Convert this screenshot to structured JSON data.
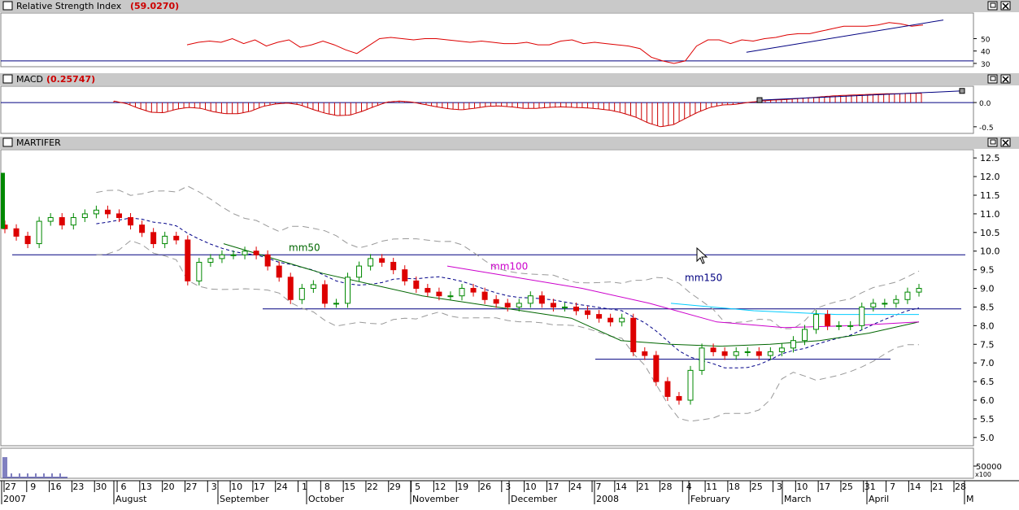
{
  "colors": {
    "bg": "#ffffff",
    "titlebar": "#c9c9c9",
    "panel_border": "#808080",
    "rsi_line": "#dd0000",
    "blue_line": "#000080",
    "macd_hist": "#cc0000",
    "candle_up": "#008800",
    "candle_down": "#dd0000",
    "mm50": "#006600",
    "mm100": "#cc00cc",
    "mm150": "#00ccff",
    "bollinger": "#999999",
    "dash_ma": "#000088",
    "title_value": "#cc0000"
  },
  "window_icons": [
    "restore-icon",
    "close-icon"
  ],
  "panels": {
    "rsi": {
      "title": "Relative Strength Index",
      "value": "(59.0270)"
    },
    "macd": {
      "title": "MACD",
      "value": "(0.25747)"
    },
    "price": {
      "title": "MARTIFER"
    },
    "volume": {
      "scale_label": "50000",
      "multiplier": "x100"
    }
  },
  "x_axis": {
    "day_labels": [
      "27",
      "9",
      "16",
      "23",
      "30",
      "6",
      "13",
      "20",
      "27",
      "3",
      "10",
      "17",
      "24",
      "1",
      "8",
      "15",
      "22",
      "29",
      "5",
      "12",
      "19",
      "26",
      "3",
      "10",
      "17",
      "24",
      "7",
      "14",
      "21",
      "28",
      "4",
      "11",
      "18",
      "25",
      "3",
      "10",
      "17",
      "25",
      "31",
      "7",
      "14",
      "21",
      "28"
    ],
    "month_labels": [
      "2007",
      "August",
      "September",
      "October",
      "November",
      "December",
      "2008",
      "February",
      "March",
      "April",
      "M"
    ]
  },
  "chart_data": [
    {
      "type": "line",
      "title": "Relative Strength Index",
      "value_label": "(59.0270)",
      "y_ticks": [
        30,
        40,
        50
      ],
      "ylim": [
        28,
        70
      ],
      "reference_level": 32,
      "series": [
        {
          "values": [
            45,
            47,
            48,
            47,
            50,
            46,
            49,
            44,
            47,
            49,
            43,
            45,
            48,
            45,
            41,
            38,
            44,
            50,
            51,
            50,
            49,
            50,
            50,
            49,
            48,
            47,
            48,
            47,
            46,
            46,
            47,
            45,
            45,
            48,
            49,
            46,
            47,
            46,
            45,
            44,
            42,
            35,
            32,
            30,
            32,
            44,
            49,
            49,
            46,
            49,
            48,
            50,
            51,
            53,
            54,
            54,
            56,
            58,
            60,
            60,
            60,
            61,
            63,
            62,
            60,
            61
          ]
        }
      ],
      "trendline": {
        "from": [
          0.76,
          39
        ],
        "to": [
          1.0,
          65
        ]
      }
    },
    {
      "type": "bar",
      "title": "MACD",
      "value_label": "(0.25747)",
      "y_ticks": [
        -0.5,
        0.0
      ],
      "ylim": [
        -0.62,
        0.32
      ],
      "series": [
        {
          "values": [
            0.03,
            -0.02,
            -0.12,
            -0.2,
            -0.21,
            -0.14,
            -0.1,
            -0.12,
            -0.19,
            -0.23,
            -0.23,
            -0.18,
            -0.08,
            -0.03,
            -0.01,
            -0.05,
            -0.14,
            -0.22,
            -0.27,
            -0.26,
            -0.18,
            -0.08,
            0.01,
            0.03,
            0.01,
            -0.04,
            -0.09,
            -0.13,
            -0.15,
            -0.12,
            -0.08,
            -0.07,
            -0.09,
            -0.12,
            -0.12,
            -0.1,
            -0.09,
            -0.1,
            -0.11,
            -0.13,
            -0.16,
            -0.22,
            -0.3,
            -0.42,
            -0.5,
            -0.46,
            -0.33,
            -0.2,
            -0.1,
            -0.05,
            -0.04,
            0.0,
            0.03,
            0.05,
            0.06,
            0.08,
            0.1,
            0.12,
            0.14,
            0.15,
            0.16,
            0.17,
            0.18,
            0.18,
            0.19,
            0.19
          ]
        }
      ],
      "signal_line": {
        "from": [
          0.66,
          0.05
        ],
        "to": [
          1.0,
          0.24
        ]
      }
    },
    {
      "type": "line",
      "title": "MARTIFER",
      "y_ticks": [
        5.0,
        5.5,
        6.0,
        6.5,
        7.0,
        7.5,
        8.0,
        8.5,
        9.0,
        9.5,
        10.0,
        10.5,
        11.0,
        11.5,
        12.0,
        12.5
      ],
      "ylim": [
        4.8,
        12.7
      ],
      "series": [
        {
          "name": "close",
          "values": [
            10.6,
            10.4,
            10.2,
            10.8,
            10.9,
            10.7,
            10.9,
            11.0,
            11.1,
            11.0,
            10.9,
            10.7,
            10.5,
            10.2,
            10.4,
            10.3,
            9.2,
            9.7,
            9.8,
            9.9,
            9.9,
            10.0,
            9.9,
            9.6,
            9.3,
            8.7,
            9.0,
            9.1,
            8.6,
            8.6,
            9.3,
            9.6,
            9.8,
            9.7,
            9.5,
            9.2,
            9.0,
            8.9,
            8.8,
            8.8,
            9.0,
            8.9,
            8.7,
            8.6,
            8.5,
            8.6,
            8.8,
            8.6,
            8.5,
            8.5,
            8.4,
            8.3,
            8.2,
            8.1,
            8.2,
            7.3,
            7.2,
            6.5,
            6.1,
            6.0,
            6.8,
            7.4,
            7.3,
            7.2,
            7.3,
            7.3,
            7.2,
            7.3,
            7.4,
            7.6,
            7.9,
            8.3,
            8.0,
            8.0,
            8.0,
            8.5,
            8.6,
            8.6,
            8.7,
            8.9,
            9.0
          ]
        },
        {
          "name": "mm50",
          "values": [
            10.2,
            9.8,
            9.4,
            9.1,
            8.8,
            8.6,
            8.4,
            8.2,
            7.6,
            7.5,
            7.45,
            7.5,
            7.6,
            7.8,
            8.1
          ]
        },
        {
          "name": "mm100",
          "values": [
            9.6,
            9.3,
            9.0,
            8.6,
            8.1,
            7.95,
            8.0,
            8.1
          ]
        },
        {
          "name": "mm150",
          "values": [
            8.6,
            8.4,
            8.3,
            8.3
          ]
        }
      ],
      "annotations": [
        "mm50",
        "mm100",
        "mm150"
      ],
      "horizontal_lines": [
        9.9,
        8.45,
        7.1
      ]
    }
  ]
}
